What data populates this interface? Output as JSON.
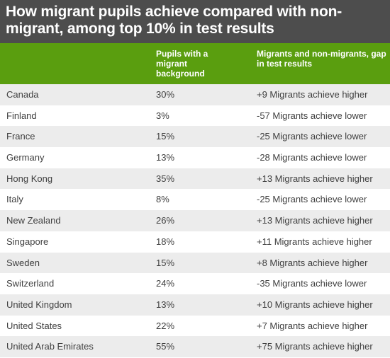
{
  "title": "How migrant pupils achieve compared with non-migrant, among top 10% in test results",
  "colors": {
    "title_background": "#4d4d4d",
    "header_background": "#5a9e0f",
    "stripe_background": "#ececec",
    "text": "#404040"
  },
  "chart_data": {
    "type": "table",
    "title": "How migrant pupils achieve compared with non-migrant, among top 10% in test results",
    "columns": [
      "",
      "Pupils with a migrant background",
      "Migrants and non-migrants, gap in test results"
    ],
    "rows": [
      {
        "country": "Canada",
        "share": "30%",
        "gap": "+9 Migrants achieve higher"
      },
      {
        "country": "Finland",
        "share": "3%",
        "gap": "-57 Migrants achieve lower"
      },
      {
        "country": "France",
        "share": "15%",
        "gap": "-25 Migrants achieve lower"
      },
      {
        "country": "Germany",
        "share": "13%",
        "gap": "-28 Migrants achieve lower"
      },
      {
        "country": "Hong Kong",
        "share": "35%",
        "gap": "+13 Migrants achieve higher"
      },
      {
        "country": "Italy",
        "share": "8%",
        "gap": "-25 Migrants achieve lower"
      },
      {
        "country": "New Zealand",
        "share": "26%",
        "gap": "+13 Migrants achieve higher"
      },
      {
        "country": "Singapore",
        "share": "18%",
        "gap": "+11 Migrants achieve higher"
      },
      {
        "country": "Sweden",
        "share": "15%",
        "gap": "+8 Migrants achieve higher"
      },
      {
        "country": "Switzerland",
        "share": "24%",
        "gap": "-35 Migrants achieve lower"
      },
      {
        "country": "United Kingdom",
        "share": "13%",
        "gap": "+10 Migrants achieve higher"
      },
      {
        "country": "United States",
        "share": "22%",
        "gap": "+7 Migrants achieve higher"
      },
      {
        "country": "United Arab Emirates",
        "share": "55%",
        "gap": "+75 Migrants achieve higher"
      }
    ]
  }
}
